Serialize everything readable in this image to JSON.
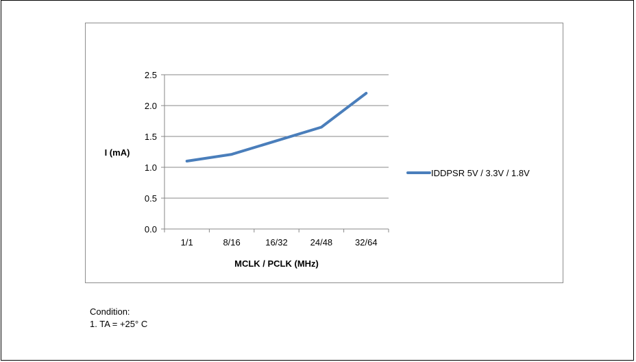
{
  "chart_data": {
    "type": "line",
    "categories": [
      "1/1",
      "8/16",
      "16/32",
      "24/48",
      "32/64"
    ],
    "series": [
      {
        "name": "IDDPSR 5V / 3.3V / 1.8V",
        "values": [
          1.1,
          1.21,
          1.43,
          1.65,
          2.2
        ],
        "color": "#4a7ebb"
      }
    ],
    "yticks": [
      "0.0",
      "0.5",
      "1.0",
      "1.5",
      "2.0",
      "2.5"
    ],
    "ylim": [
      0,
      2.5
    ],
    "xlabel": "MCLK / PCLK (MHz)",
    "ylabel": "I (mA)",
    "grid": true,
    "legend_position": "right"
  },
  "notes": {
    "heading": "Condition:",
    "items": [
      "1. TA = +25° C"
    ]
  }
}
